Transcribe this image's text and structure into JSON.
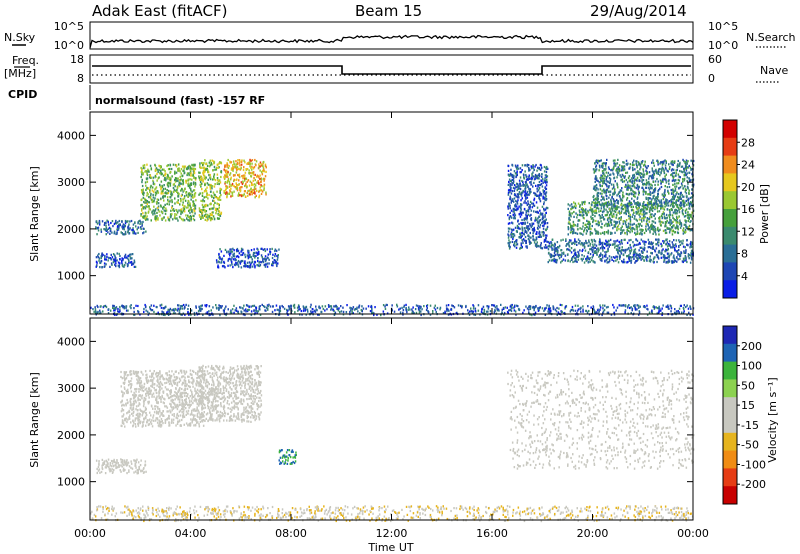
{
  "header": {
    "station": "Adak East (fitACF)",
    "beam": "Beam 15",
    "date": "29/Aug/2014"
  },
  "top_panel": {
    "nsky_label": "N.Sky",
    "nsky_ticks": [
      "10^5",
      "10^0"
    ],
    "nsearch_label": "N.Search",
    "freq_label_1": "Freq.",
    "freq_label_2": "[MHz]",
    "freq_ticks": [
      "18",
      "8"
    ],
    "nave_label": "Nave",
    "nave_ticks": [
      "60",
      "0"
    ],
    "cpid_label": "CPID",
    "cpid_text": "normalsound (fast) -157 RF"
  },
  "time_axis": {
    "label": "Time UT",
    "ticks": [
      "00:00",
      "04:00",
      "08:00",
      "12:00",
      "16:00",
      "20:00",
      "00:00"
    ]
  },
  "colors": {
    "power_scale": [
      "#0a1ee6",
      "#1e46b4",
      "#2a6e96",
      "#3a8a6e",
      "#46a03c",
      "#9ac832",
      "#e6c81e",
      "#f08c1e",
      "#e63c14",
      "#d20000"
    ],
    "velocity_scale": [
      "#1e28b4",
      "#1e64b4",
      "#3cb43c",
      "#8cd250",
      "#c8c8c0",
      "#c8c8c0",
      "#e6b41e",
      "#f08c14",
      "#e63c14",
      "#c80000"
    ]
  },
  "chart_data": [
    {
      "type": "heatmap",
      "name": "Power",
      "xlabel": "Time UT",
      "ylabel": "Slant Range [km]",
      "x_range_hours": [
        0,
        24
      ],
      "y_range": [
        180,
        4500
      ],
      "yticks": [
        "4000",
        "3000",
        "2000",
        "1000"
      ],
      "colorbar": {
        "label": "Power [dB]",
        "ticks": [
          "28",
          "24",
          "20",
          "16",
          "12",
          "8",
          "4"
        ],
        "range": [
          0,
          30
        ]
      },
      "regions": [
        {
          "t0": 0.2,
          "t1": 1.8,
          "r0": 1200,
          "r1": 1500,
          "level": 5
        },
        {
          "t0": 0.2,
          "t1": 2.2,
          "r0": 1900,
          "r1": 2200,
          "level": 7
        },
        {
          "t0": 2.0,
          "t1": 4.2,
          "r0": 2200,
          "r1": 3400,
          "level": 14
        },
        {
          "t0": 4.3,
          "t1": 5.2,
          "r0": 2200,
          "r1": 3500,
          "level": 16
        },
        {
          "t0": 5.3,
          "t1": 7.0,
          "r0": 2700,
          "r1": 3500,
          "level": 20
        },
        {
          "t0": 5.0,
          "t1": 7.5,
          "r0": 1200,
          "r1": 1600,
          "level": 5
        },
        {
          "t0": 16.6,
          "t1": 18.2,
          "r0": 1600,
          "r1": 3400,
          "level": 6
        },
        {
          "t0": 18.2,
          "t1": 24.0,
          "r0": 1300,
          "r1": 1800,
          "level": 7
        },
        {
          "t0": 19.0,
          "t1": 24.0,
          "r0": 1900,
          "r1": 2600,
          "level": 11
        },
        {
          "t0": 20.0,
          "t1": 24.0,
          "r0": 2500,
          "r1": 3500,
          "level": 9
        },
        {
          "t0": 0.0,
          "t1": 24.0,
          "r0": 180,
          "r1": 400,
          "level": 6
        }
      ]
    },
    {
      "type": "heatmap",
      "name": "Velocity",
      "xlabel": "Time UT",
      "ylabel": "Slant Range [km]",
      "x_range_hours": [
        0,
        24
      ],
      "y_range": [
        180,
        4500
      ],
      "yticks": [
        "4000",
        "3000",
        "2000",
        "1000"
      ],
      "colorbar": {
        "label": "Velocity [m s⁻¹]",
        "ticks": [
          "200",
          "100",
          "50",
          "15",
          "-15",
          "-50",
          "-100",
          "-200"
        ],
        "range": [
          -250,
          250
        ]
      },
      "regions": [
        {
          "t0": 0.2,
          "t1": 2.2,
          "r0": 1200,
          "r1": 1500,
          "level": 0
        },
        {
          "t0": 1.2,
          "t1": 4.5,
          "r0": 2200,
          "r1": 3400,
          "level": 0
        },
        {
          "t0": 4.3,
          "t1": 6.8,
          "r0": 2300,
          "r1": 3500,
          "level": 0
        },
        {
          "t0": 7.5,
          "t1": 8.2,
          "r0": 1400,
          "r1": 1700,
          "level": 150
        },
        {
          "t0": 16.6,
          "t1": 24.0,
          "r0": 1300,
          "r1": 3400,
          "level": 0
        },
        {
          "t0": 0.0,
          "t1": 24.0,
          "r0": 180,
          "r1": 500,
          "level": -40
        }
      ]
    }
  ]
}
